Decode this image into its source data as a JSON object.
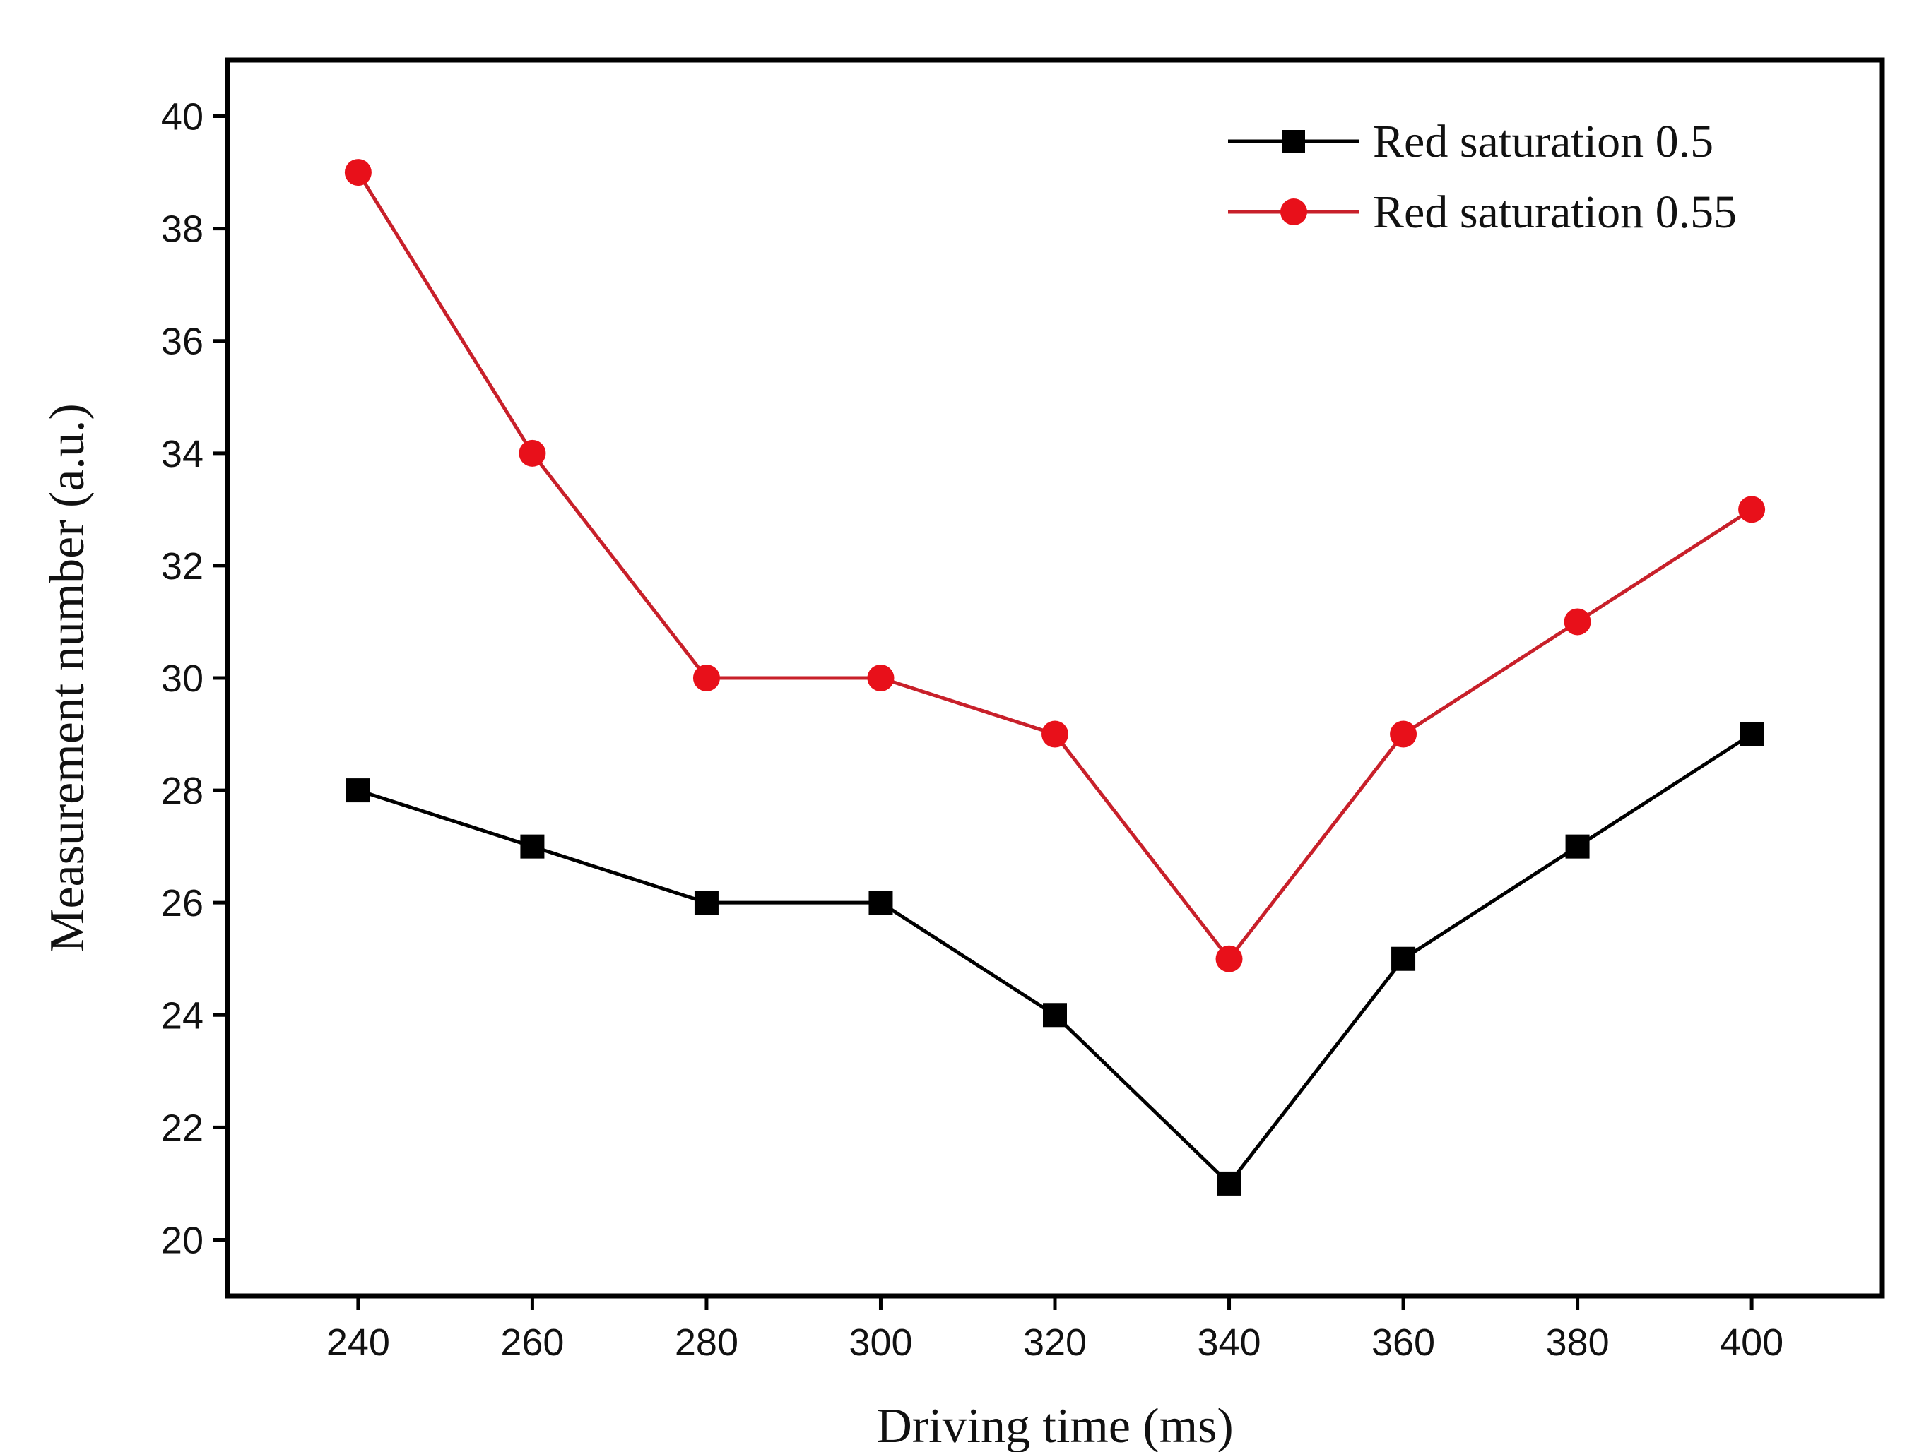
{
  "chart_data": {
    "type": "line",
    "title": "",
    "xlabel": "Driving time (ms)",
    "ylabel": "Measurement number (a.u.)",
    "x": [
      240,
      260,
      280,
      300,
      320,
      340,
      360,
      380,
      400
    ],
    "xlim": [
      225,
      415
    ],
    "ylim": [
      19,
      41
    ],
    "xticks": [
      240,
      260,
      280,
      300,
      320,
      340,
      360,
      380,
      400
    ],
    "yticks": [
      20,
      22,
      24,
      26,
      28,
      30,
      32,
      34,
      36,
      38,
      40
    ],
    "grid": false,
    "legend_position": "top-right",
    "series": [
      {
        "name": "Red saturation 0.5",
        "color": "#000000",
        "marker": "square",
        "values": [
          28,
          27,
          26,
          26,
          24,
          21,
          25,
          27,
          29
        ]
      },
      {
        "name": "Red saturation 0.55",
        "color": "#e8101a",
        "line_color": "#c8202a",
        "marker": "circle",
        "values": [
          39,
          34,
          30,
          30,
          29,
          25,
          29,
          31,
          33
        ]
      }
    ]
  }
}
